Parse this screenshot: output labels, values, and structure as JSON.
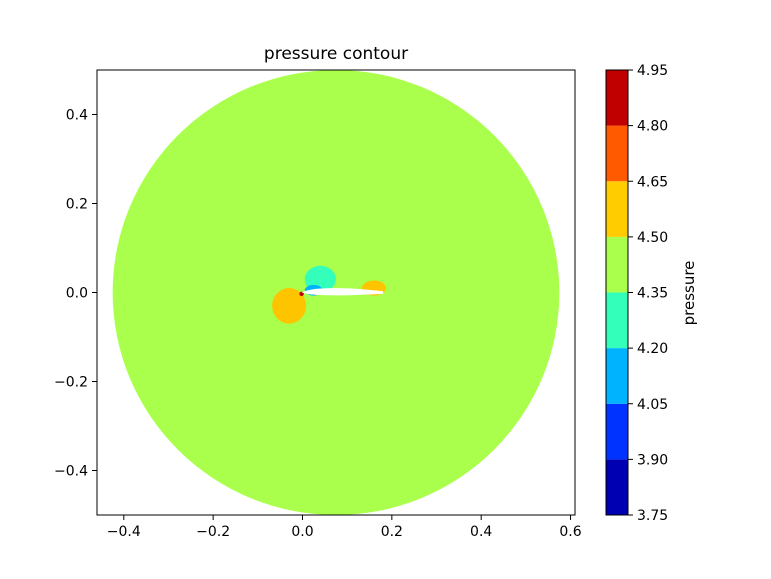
{
  "chart_data": {
    "type": "contour",
    "title": "pressure contour",
    "xlabel": "",
    "ylabel": "",
    "xlim": [
      -0.46,
      0.61
    ],
    "ylim": [
      -0.5,
      0.5
    ],
    "x_ticks": [
      -0.4,
      -0.2,
      0.0,
      0.2,
      0.4,
      0.6
    ],
    "x_tick_labels": [
      "−0.4",
      "−0.2",
      "0.0",
      "0.2",
      "0.4",
      "0.6"
    ],
    "y_ticks": [
      -0.4,
      -0.2,
      0.0,
      0.2,
      0.4
    ],
    "y_tick_labels": [
      "−0.4",
      "−0.2",
      "0.0",
      "0.2",
      "0.4"
    ],
    "domain": {
      "shape": "circle",
      "center": [
        0.075,
        0.0
      ],
      "radius": 0.5
    },
    "background_level": "4.35-4.50",
    "colorbar": {
      "label": "pressure",
      "levels": [
        3.75,
        3.9,
        4.05,
        4.2,
        4.35,
        4.5,
        4.65,
        4.8,
        4.95
      ],
      "level_labels": [
        "3.75",
        "3.90",
        "4.05",
        "4.20",
        "4.35",
        "4.50",
        "4.65",
        "4.80",
        "4.95"
      ],
      "colors": [
        "#0000b3",
        "#0033ff",
        "#00b3ff",
        "#33ffbb",
        "#aaff4d",
        "#ffcc00",
        "#ff5a00",
        "#c00000"
      ]
    },
    "features": [
      {
        "name": "high pressure lobe below leading edge",
        "level": "4.50-4.65",
        "color": "#ffc400",
        "center": [
          -0.03,
          -0.03
        ],
        "rx": 0.038,
        "ry": 0.04
      },
      {
        "name": "low pressure lobe above airfoil",
        "level": "4.20-4.35",
        "color": "#33ffbb",
        "center": [
          0.04,
          0.03
        ],
        "rx": 0.035,
        "ry": 0.03
      },
      {
        "name": "suction peak",
        "level": "4.05-4.20",
        "color": "#00b3ff",
        "center": [
          0.025,
          0.005
        ],
        "rx": 0.02,
        "ry": 0.012
      },
      {
        "name": "stagnation point",
        "level": "4.80-4.95",
        "color": "#c00000",
        "center": [
          -0.002,
          -0.003
        ],
        "rx": 0.005,
        "ry": 0.005
      },
      {
        "name": "trailing edge high pressure",
        "level": "4.50-4.65",
        "color": "#ffc400",
        "center": [
          0.16,
          0.01
        ],
        "rx": 0.027,
        "ry": 0.017
      }
    ],
    "airfoil": {
      "leading_edge": [
        0.0,
        0.0
      ],
      "trailing_edge": [
        0.18,
        0.0
      ],
      "max_thickness": 0.012
    }
  }
}
